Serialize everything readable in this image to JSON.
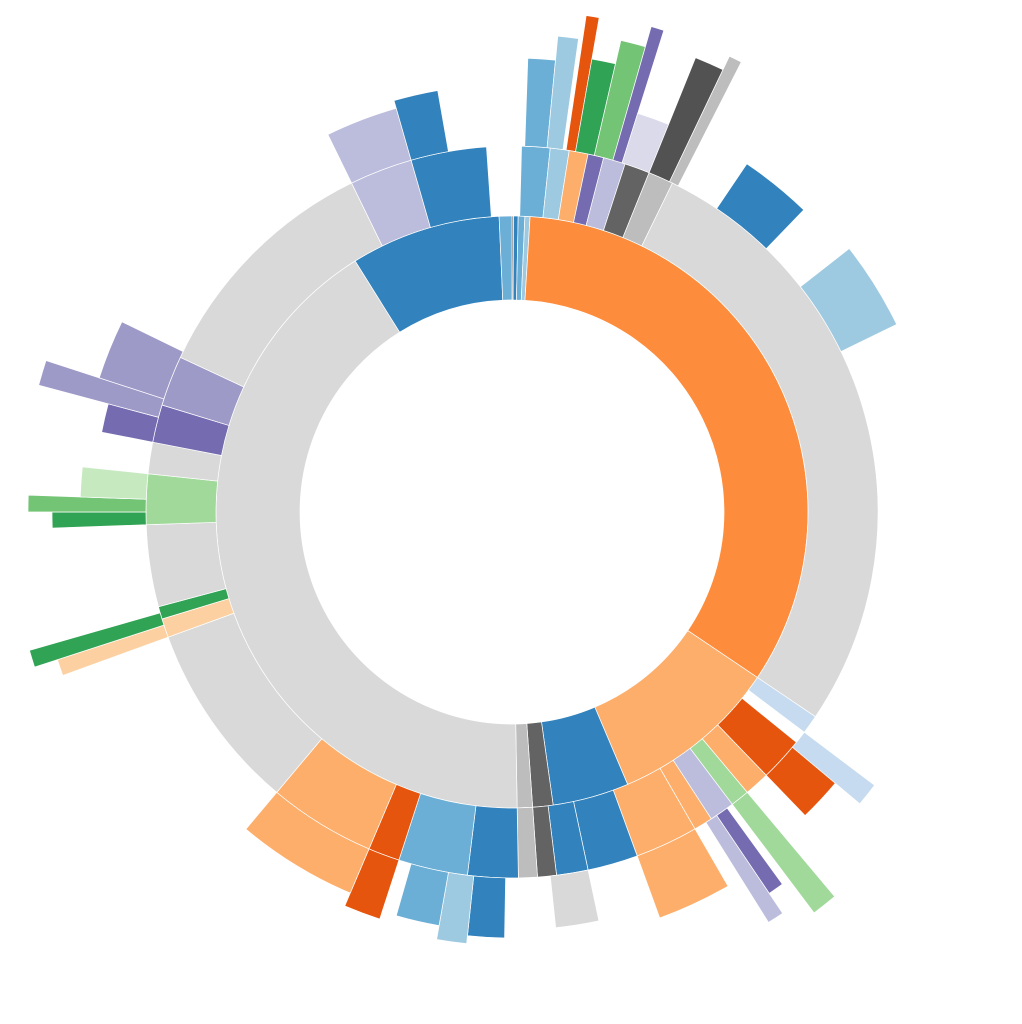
{
  "palette": {
    "gray": "#d9d9d9",
    "gray_mid": "#bdbdbd",
    "gray_dark": "#636363",
    "gray_black": "#525252",
    "orange": "#fd8d3c",
    "orange_light": "#fdae6b",
    "orange_pale": "#fdd0a2",
    "orange_dark": "#e6550d",
    "blue": "#3182bd",
    "blue_mid": "#6baed6",
    "blue_light": "#9ecae1",
    "blue_pale": "#c6dbef",
    "purple": "#756bb1",
    "purple_mid": "#9e9ac8",
    "purple_light": "#bcbddc",
    "purple_pale": "#dadaeb",
    "green": "#31a354",
    "green_mid": "#74c476",
    "green_light": "#a1d99b",
    "green_pale": "#c7e9c0"
  },
  "rings": [
    {
      "ring": 1,
      "segments": [
        {
          "start": 0.0,
          "end": 0.3,
          "color": "gray_dark"
        },
        {
          "start": 0.3,
          "end": 1.2,
          "color": "blue"
        },
        {
          "start": 1.2,
          "end": 2.5,
          "color": "blue_mid"
        },
        {
          "start": 2.5,
          "end": 3.5,
          "color": "blue_light"
        },
        {
          "start": 3.5,
          "end": 124.0,
          "color": "orange"
        },
        {
          "start": 124.0,
          "end": 157.0,
          "color": "orange_light"
        },
        {
          "start": 157.0,
          "end": 172.0,
          "color": "blue"
        },
        {
          "start": 172.0,
          "end": 176.0,
          "color": "gray_dark"
        },
        {
          "start": 176.0,
          "end": 179.0,
          "color": "gray_mid"
        },
        {
          "start": 179.0,
          "end": 328.0,
          "color": "gray"
        },
        {
          "start": 328.0,
          "end": 357.5,
          "color": "blue"
        },
        {
          "start": 357.5,
          "end": 360.0,
          "color": "blue_mid"
        }
      ]
    },
    {
      "ring": 2,
      "segments": [
        {
          "start": 1.5,
          "end": 6.0,
          "color": "blue_mid"
        },
        {
          "start": 6.0,
          "end": 9.0,
          "color": "blue_light"
        },
        {
          "start": 9.0,
          "end": 12.0,
          "color": "orange_light"
        },
        {
          "start": 12.0,
          "end": 14.5,
          "color": "purple"
        },
        {
          "start": 14.5,
          "end": 18.0,
          "color": "purple_light"
        },
        {
          "start": 18.0,
          "end": 22.0,
          "color": "gray_dark"
        },
        {
          "start": 22.0,
          "end": 26.0,
          "color": "gray_mid"
        },
        {
          "start": 26.0,
          "end": 124.0,
          "color": "gray"
        },
        {
          "start": 124.0,
          "end": 127.0,
          "color": "blue_pale"
        },
        {
          "start": 129.0,
          "end": 136.0,
          "color": "orange_dark"
        },
        {
          "start": 136.0,
          "end": 140.0,
          "color": "orange_light"
        },
        {
          "start": 140.0,
          "end": 143.0,
          "color": "green_light"
        },
        {
          "start": 143.0,
          "end": 147.0,
          "color": "purple_light"
        },
        {
          "start": 147.0,
          "end": 150.0,
          "color": "orange_light"
        },
        {
          "start": 150.0,
          "end": 160.0,
          "color": "orange_light"
        },
        {
          "start": 160.0,
          "end": 168.0,
          "color": "blue"
        },
        {
          "start": 168.0,
          "end": 173.0,
          "color": "blue"
        },
        {
          "start": 173.0,
          "end": 176.0,
          "color": "gray_dark"
        },
        {
          "start": 176.0,
          "end": 179.0,
          "color": "gray_mid"
        },
        {
          "start": 179.0,
          "end": 187.0,
          "color": "blue"
        },
        {
          "start": 187.0,
          "end": 198.0,
          "color": "blue_mid"
        },
        {
          "start": 198.0,
          "end": 203.0,
          "color": "orange_dark"
        },
        {
          "start": 203.0,
          "end": 220.0,
          "color": "orange_light"
        },
        {
          "start": 220.0,
          "end": 250.0,
          "color": "gray"
        },
        {
          "start": 250.0,
          "end": 253.0,
          "color": "orange_pale"
        },
        {
          "start": 253.0,
          "end": 255.0,
          "color": "green"
        },
        {
          "start": 255.0,
          "end": 268.0,
          "color": "gray"
        },
        {
          "start": 268.0,
          "end": 276.0,
          "color": "green_light"
        },
        {
          "start": 276.0,
          "end": 281.0,
          "color": "gray"
        },
        {
          "start": 281.0,
          "end": 287.0,
          "color": "purple"
        },
        {
          "start": 287.0,
          "end": 295.0,
          "color": "purple_mid"
        },
        {
          "start": 295.0,
          "end": 334.0,
          "color": "gray"
        },
        {
          "start": 334.0,
          "end": 344.0,
          "color": "purple_light"
        },
        {
          "start": 344.0,
          "end": 356.0,
          "color": "blue"
        }
      ]
    },
    {
      "ring": 3,
      "segments": [
        {
          "start": 2.0,
          "end": 5.5,
          "color": "blue_mid"
        },
        {
          "start": 5.5,
          "end": 8.0,
          "color": "blue_light"
        },
        {
          "start": 8.5,
          "end": 10.0,
          "color": "orange_dark"
        },
        {
          "start": 10.0,
          "end": 13.0,
          "color": "green"
        },
        {
          "start": 13.0,
          "end": 16.0,
          "color": "green_mid"
        },
        {
          "start": 16.0,
          "end": 17.5,
          "color": "purple"
        },
        {
          "start": 17.5,
          "end": 22.0,
          "color": "purple_pale"
        },
        {
          "start": 22.0,
          "end": 25.5,
          "color": "gray_black"
        },
        {
          "start": 25.5,
          "end": 27.0,
          "color": "gray_mid"
        },
        {
          "start": 34.0,
          "end": 44.0,
          "color": "blue"
        },
        {
          "start": 52.0,
          "end": 64.0,
          "color": "blue_light"
        },
        {
          "start": 127.0,
          "end": 130.0,
          "color": "blue_pale"
        },
        {
          "start": 130.0,
          "end": 136.0,
          "color": "orange_dark"
        },
        {
          "start": 140.0,
          "end": 143.0,
          "color": "green_light"
        },
        {
          "start": 144.0,
          "end": 146.0,
          "color": "purple"
        },
        {
          "start": 146.0,
          "end": 148.0,
          "color": "purple_light"
        },
        {
          "start": 150.0,
          "end": 160.0,
          "color": "orange_light"
        },
        {
          "start": 168.0,
          "end": 174.0,
          "color": "gray"
        },
        {
          "start": 181.0,
          "end": 186.0,
          "color": "blue"
        },
        {
          "start": 186.0,
          "end": 190.0,
          "color": "blue_light"
        },
        {
          "start": 190.0,
          "end": 196.0,
          "color": "blue_mid"
        },
        {
          "start": 198.0,
          "end": 203.0,
          "color": "orange_dark"
        },
        {
          "start": 203.0,
          "end": 220.0,
          "color": "orange_light"
        },
        {
          "start": 250.0,
          "end": 252.0,
          "color": "orange_pale"
        },
        {
          "start": 252.0,
          "end": 254.0,
          "color": "green"
        },
        {
          "start": 268.0,
          "end": 270.0,
          "color": "green"
        },
        {
          "start": 270.0,
          "end": 272.0,
          "color": "green_mid"
        },
        {
          "start": 272.0,
          "end": 276.0,
          "color": "green_pale"
        },
        {
          "start": 281.0,
          "end": 285.0,
          "color": "purple"
        },
        {
          "start": 285.0,
          "end": 288.0,
          "color": "purple_mid"
        },
        {
          "start": 288.0,
          "end": 296.0,
          "color": "purple_mid"
        },
        {
          "start": 334.0,
          "end": 344.0,
          "color": "purple_light"
        },
        {
          "start": 344.0,
          "end": 350.0,
          "color": "blue"
        }
      ]
    }
  ]
}
